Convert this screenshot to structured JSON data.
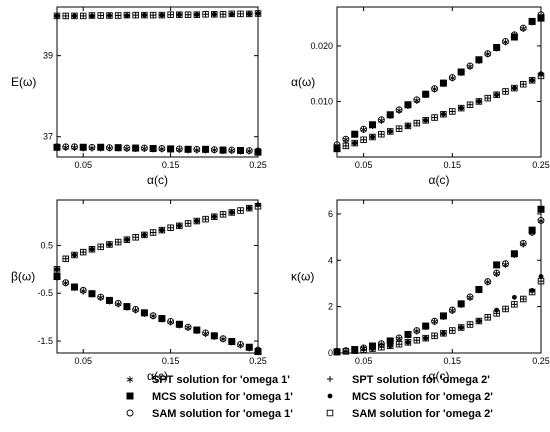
{
  "chart_data": [
    {
      "type": "scatter",
      "panel": "top-left",
      "xlabel": "α(c)",
      "ylabel": "E(ω)",
      "xlim": [
        0.02,
        0.25
      ],
      "ylim": [
        36.5,
        40.2
      ],
      "xticks": [
        0.05,
        0.15,
        0.25
      ],
      "yticks": [
        37,
        39
      ],
      "x": [
        0.02,
        0.03,
        0.04,
        0.05,
        0.06,
        0.07,
        0.08,
        0.09,
        0.1,
        0.11,
        0.12,
        0.13,
        0.14,
        0.15,
        0.16,
        0.17,
        0.18,
        0.19,
        0.2,
        0.21,
        0.22,
        0.23,
        0.24,
        0.25
      ],
      "series": [
        {
          "name": "SPT solution for 'omega 1'",
          "marker": "star",
          "values": [
            36.75,
            36.75,
            36.75,
            36.74,
            36.74,
            36.74,
            36.73,
            36.73,
            36.72,
            36.72,
            36.72,
            36.71,
            36.71,
            36.7,
            36.7,
            36.69,
            36.69,
            36.68,
            36.68,
            36.67,
            36.67,
            36.66,
            36.66,
            36.65
          ]
        },
        {
          "name": "MCS solution for 'omega 1'",
          "marker": "square",
          "values": [
            36.74,
            null,
            null,
            36.74,
            null,
            36.74,
            null,
            36.73,
            null,
            36.72,
            null,
            36.71,
            null,
            36.7,
            null,
            36.69,
            null,
            36.69,
            null,
            36.67,
            null,
            36.66,
            null,
            36.62
          ]
        },
        {
          "name": "SAM solution for 'omega 1'",
          "marker": "circle",
          "values": [
            36.75,
            36.75,
            36.75,
            36.74,
            36.74,
            36.74,
            36.73,
            36.73,
            36.72,
            36.72,
            36.72,
            36.71,
            36.71,
            36.7,
            36.7,
            36.69,
            36.69,
            36.68,
            36.68,
            36.67,
            36.67,
            36.66,
            36.66,
            36.65
          ]
        },
        {
          "name": "SPT solution for 'omega 2'",
          "marker": "plus",
          "values": [
            39.98,
            39.98,
            39.98,
            39.98,
            39.99,
            39.99,
            39.99,
            39.99,
            40.0,
            40.0,
            40.0,
            40.0,
            40.0,
            40.01,
            40.01,
            40.01,
            40.01,
            40.02,
            40.02,
            40.02,
            40.03,
            40.03,
            40.03,
            40.04
          ]
        },
        {
          "name": "MCS solution for 'omega 2'",
          "marker": "dot",
          "values": [
            39.98,
            null,
            39.98,
            null,
            39.98,
            null,
            39.99,
            null,
            39.99,
            null,
            40.0,
            null,
            40.0,
            null,
            40.01,
            null,
            40.01,
            null,
            40.02,
            null,
            40.02,
            null,
            40.03,
            40.04
          ]
        },
        {
          "name": "SAM solution for 'omega 2'",
          "marker": "open-square",
          "values": [
            39.98,
            39.98,
            39.98,
            39.98,
            39.99,
            39.99,
            39.99,
            39.99,
            40.0,
            40.0,
            40.0,
            40.0,
            40.0,
            40.01,
            40.01,
            40.01,
            40.01,
            40.02,
            40.02,
            40.02,
            40.03,
            40.03,
            40.03,
            40.04
          ]
        }
      ]
    },
    {
      "type": "scatter",
      "panel": "top-right",
      "xlabel": "α(c)",
      "ylabel": "α(ω)",
      "xlim": [
        0.02,
        0.25
      ],
      "ylim": [
        0,
        0.027
      ],
      "xticks": [
        0.05,
        0.15,
        0.25
      ],
      "yticks": [
        0.01,
        0.02
      ],
      "ytick_labels": [
        "0.010",
        "0.020"
      ],
      "x": [
        0.02,
        0.03,
        0.04,
        0.05,
        0.06,
        0.07,
        0.08,
        0.09,
        0.1,
        0.11,
        0.12,
        0.13,
        0.14,
        0.15,
        0.16,
        0.17,
        0.18,
        0.19,
        0.2,
        0.21,
        0.22,
        0.23,
        0.24,
        0.25
      ],
      "series": [
        {
          "name": "SPT solution for 'omega 1'",
          "marker": "star",
          "values": [
            0.0022,
            0.0032,
            0.0041,
            0.005,
            0.0058,
            0.0067,
            0.0076,
            0.0085,
            0.0094,
            0.0103,
            0.0113,
            0.0123,
            0.0133,
            0.0143,
            0.0153,
            0.0164,
            0.0175,
            0.0186,
            0.0197,
            0.0208,
            0.022,
            0.0232,
            0.0244,
            0.0256
          ]
        },
        {
          "name": "MCS solution for 'omega 1'",
          "marker": "square",
          "values": [
            0.0015,
            null,
            0.0041,
            null,
            0.0058,
            null,
            0.0076,
            null,
            0.0094,
            null,
            0.0113,
            null,
            0.0133,
            null,
            0.0153,
            null,
            0.0175,
            null,
            0.0197,
            null,
            0.0216,
            null,
            0.0244,
            0.025
          ]
        },
        {
          "name": "SAM solution for 'omega 1'",
          "marker": "circle",
          "values": [
            0.0022,
            0.0032,
            0.0041,
            0.005,
            0.0058,
            0.0067,
            0.0076,
            0.0085,
            0.0094,
            0.0103,
            0.0113,
            0.0123,
            0.0133,
            0.0143,
            0.0153,
            0.0164,
            0.0175,
            0.0186,
            0.0197,
            0.0208,
            0.022,
            0.0232,
            0.0244,
            0.0256
          ]
        },
        {
          "name": "SPT solution for 'omega 2'",
          "marker": "plus",
          "values": [
            0.0015,
            0.002,
            0.0025,
            0.0031,
            0.0036,
            0.0041,
            0.0046,
            0.0051,
            0.0056,
            0.0061,
            0.0066,
            0.0071,
            0.0077,
            0.0082,
            0.0088,
            0.0094,
            0.01,
            0.0106,
            0.0112,
            0.0118,
            0.0124,
            0.0131,
            0.0138,
            0.0146
          ]
        },
        {
          "name": "MCS solution for 'omega 2'",
          "marker": "dot",
          "values": [
            0.0018,
            null,
            0.0025,
            null,
            0.0036,
            null,
            0.0046,
            null,
            0.0056,
            null,
            0.0066,
            null,
            0.0077,
            null,
            0.0088,
            null,
            0.01,
            null,
            0.0112,
            null,
            0.0124,
            null,
            0.0138,
            0.015
          ]
        },
        {
          "name": "SAM solution for 'omega 2'",
          "marker": "open-square",
          "values": [
            0.0015,
            0.002,
            0.0025,
            0.0031,
            0.0036,
            0.0041,
            0.0046,
            0.0051,
            0.0056,
            0.0061,
            0.0066,
            0.0071,
            0.0077,
            0.0082,
            0.0088,
            0.0094,
            0.01,
            0.0106,
            0.0112,
            0.0118,
            0.0124,
            0.0131,
            0.0138,
            0.0146
          ]
        }
      ]
    },
    {
      "type": "scatter",
      "panel": "bottom-left",
      "xlabel": "α(c)",
      "ylabel": "β(ω)",
      "xlim": [
        0.02,
        0.25
      ],
      "ylim": [
        -1.75,
        1.45
      ],
      "xticks": [
        0.05,
        0.15,
        0.25
      ],
      "yticks": [
        -1.5,
        -0.5,
        0.5
      ],
      "ytick_labels": [
        "-1.5",
        "-0.5",
        "0.5"
      ],
      "x": [
        0.02,
        0.03,
        0.04,
        0.05,
        0.06,
        0.07,
        0.08,
        0.09,
        0.1,
        0.11,
        0.12,
        0.13,
        0.14,
        0.15,
        0.16,
        0.17,
        0.18,
        0.19,
        0.2,
        0.21,
        0.22,
        0.23,
        0.24,
        0.25
      ],
      "series": [
        {
          "name": "SPT solution for 'omega 1'",
          "marker": "star",
          "values": [
            -0.16,
            -0.28,
            -0.37,
            -0.44,
            -0.51,
            -0.58,
            -0.65,
            -0.71,
            -0.78,
            -0.84,
            -0.91,
            -0.97,
            -1.03,
            -1.09,
            -1.15,
            -1.21,
            -1.27,
            -1.33,
            -1.39,
            -1.45,
            -1.51,
            -1.57,
            -1.63,
            -1.69
          ]
        },
        {
          "name": "MCS solution for 'omega 1'",
          "marker": "square",
          "values": [
            -0.15,
            null,
            -0.37,
            null,
            -0.51,
            null,
            -0.65,
            null,
            -0.78,
            null,
            -0.91,
            null,
            -1.03,
            null,
            -1.15,
            null,
            -1.27,
            null,
            -1.39,
            null,
            -1.51,
            null,
            -1.63,
            -1.72
          ]
        },
        {
          "name": "SAM solution for 'omega 1'",
          "marker": "circle",
          "values": [
            -0.16,
            -0.28,
            -0.37,
            -0.44,
            -0.51,
            -0.58,
            -0.65,
            -0.71,
            -0.78,
            -0.84,
            -0.91,
            -0.97,
            -1.03,
            -1.09,
            -1.15,
            -1.21,
            -1.27,
            -1.33,
            -1.39,
            -1.45,
            -1.51,
            -1.57,
            -1.63,
            -1.69
          ]
        },
        {
          "name": "SPT solution for 'omega 2'",
          "marker": "plus",
          "values": [
            0.0,
            0.22,
            0.3,
            0.36,
            0.42,
            0.47,
            0.52,
            0.57,
            0.62,
            0.67,
            0.72,
            0.77,
            0.82,
            0.87,
            0.91,
            0.96,
            1.01,
            1.05,
            1.1,
            1.15,
            1.19,
            1.23,
            1.28,
            1.32
          ]
        },
        {
          "name": "MCS solution for 'omega 2'",
          "marker": "dot",
          "values": [
            0.0,
            null,
            0.3,
            null,
            0.42,
            null,
            0.52,
            null,
            0.62,
            null,
            0.72,
            null,
            0.82,
            null,
            0.91,
            null,
            1.01,
            null,
            1.1,
            null,
            1.19,
            null,
            1.28,
            1.35
          ]
        },
        {
          "name": "SAM solution for 'omega 2'",
          "marker": "open-square",
          "values": [
            0.0,
            0.22,
            0.3,
            0.36,
            0.42,
            0.47,
            0.52,
            0.57,
            0.62,
            0.67,
            0.72,
            0.77,
            0.82,
            0.87,
            0.91,
            0.96,
            1.01,
            1.05,
            1.1,
            1.15,
            1.19,
            1.23,
            1.28,
            1.32
          ]
        }
      ]
    },
    {
      "type": "scatter",
      "panel": "bottom-right",
      "xlabel": "α(c)",
      "ylabel": "κ(ω)",
      "xlim": [
        0.02,
        0.25
      ],
      "ylim": [
        0,
        6.6
      ],
      "xticks": [
        0.05,
        0.15,
        0.25
      ],
      "yticks": [
        0,
        2,
        4,
        6
      ],
      "x": [
        0.02,
        0.03,
        0.04,
        0.05,
        0.06,
        0.07,
        0.08,
        0.09,
        0.1,
        0.11,
        0.12,
        0.13,
        0.14,
        0.15,
        0.16,
        0.17,
        0.18,
        0.19,
        0.2,
        0.21,
        0.22,
        0.23,
        0.24,
        0.25
      ],
      "series": [
        {
          "name": "SPT solution for 'omega 1'",
          "marker": "star",
          "values": [
            0.07,
            0.1,
            0.15,
            0.22,
            0.3,
            0.4,
            0.52,
            0.65,
            0.8,
            0.97,
            1.16,
            1.37,
            1.6,
            1.85,
            2.12,
            2.42,
            2.74,
            3.08,
            3.45,
            3.85,
            4.28,
            4.73,
            5.21,
            5.72
          ]
        },
        {
          "name": "MCS solution for 'omega 1'",
          "marker": "square",
          "values": [
            0.05,
            null,
            0.15,
            null,
            0.3,
            null,
            0.52,
            null,
            0.8,
            null,
            1.16,
            null,
            1.6,
            null,
            2.12,
            null,
            2.74,
            null,
            3.8,
            null,
            4.28,
            null,
            5.3,
            6.2
          ]
        },
        {
          "name": "SAM solution for 'omega 1'",
          "marker": "circle",
          "values": [
            0.07,
            0.1,
            0.15,
            0.22,
            0.3,
            0.4,
            0.52,
            0.65,
            0.8,
            0.97,
            1.16,
            1.37,
            1.6,
            1.85,
            2.12,
            2.42,
            2.74,
            3.08,
            3.45,
            3.85,
            4.28,
            4.73,
            5.21,
            5.72
          ]
        },
        {
          "name": "SPT solution for 'omega 2'",
          "marker": "plus",
          "values": [
            0.04,
            0.07,
            0.1,
            0.14,
            0.19,
            0.25,
            0.31,
            0.38,
            0.46,
            0.55,
            0.64,
            0.74,
            0.85,
            0.97,
            1.1,
            1.23,
            1.38,
            1.54,
            1.71,
            1.9,
            2.1,
            2.33,
            2.63,
            3.1
          ]
        },
        {
          "name": "MCS solution for 'omega 2'",
          "marker": "dot",
          "values": [
            0.05,
            null,
            0.1,
            null,
            0.19,
            null,
            0.31,
            null,
            0.46,
            null,
            0.64,
            null,
            0.85,
            null,
            1.1,
            null,
            1.38,
            null,
            1.85,
            null,
            2.4,
            null,
            2.7,
            3.3
          ]
        },
        {
          "name": "SAM solution for 'omega 2'",
          "marker": "open-square",
          "values": [
            0.04,
            0.07,
            0.1,
            0.14,
            0.19,
            0.25,
            0.31,
            0.38,
            0.46,
            0.55,
            0.64,
            0.74,
            0.85,
            0.97,
            1.1,
            1.23,
            1.38,
            1.54,
            1.71,
            1.9,
            2.1,
            2.33,
            2.63,
            3.1
          ]
        }
      ]
    }
  ],
  "legend": {
    "items": [
      {
        "marker": "star",
        "label": "SPT solution for 'omega 1'"
      },
      {
        "marker": "plus",
        "label": "SPT solution for 'omega 2'"
      },
      {
        "marker": "square",
        "label": "MCS solution for 'omega 1'"
      },
      {
        "marker": "dot",
        "label": "MCS solution for 'omega 2'"
      },
      {
        "marker": "circle",
        "label": "SAM solution for 'omega 1'"
      },
      {
        "marker": "open-square",
        "label": "SAM solution for 'omega 2'"
      }
    ]
  }
}
